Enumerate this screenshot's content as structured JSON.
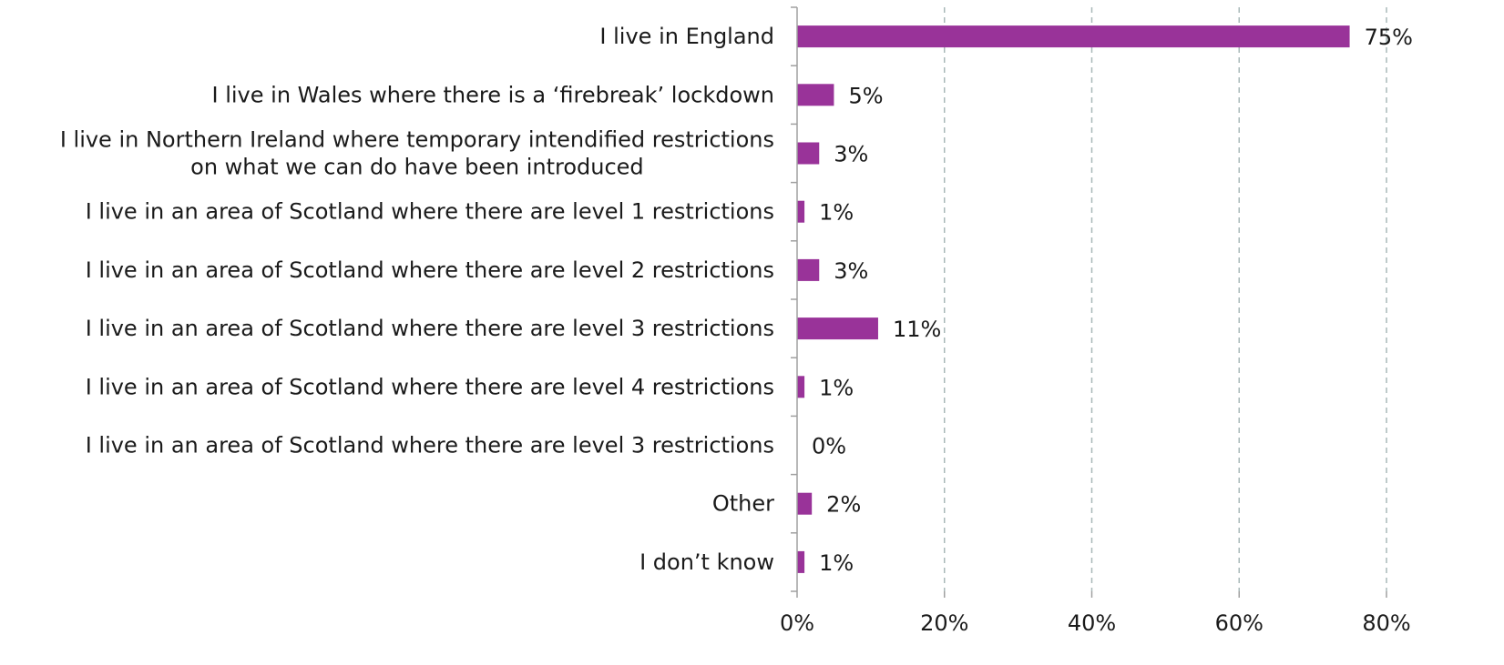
{
  "chart_data": {
    "type": "bar",
    "orientation": "horizontal",
    "categories": [
      [
        "I live in England"
      ],
      [
        "I live in Wales where there is a ‘firebreak’ lockdown"
      ],
      [
        "I live in Northern Ireland where temporary intendified restrictions",
        "on what we can do have been introduced"
      ],
      [
        "I live in an area of Scotland where there are level 1 restrictions"
      ],
      [
        "I live in an area of Scotland where there are level 2 restrictions"
      ],
      [
        "I live in an area of Scotland where there are level 3 restrictions"
      ],
      [
        "I live in an area of Scotland where there are level 4 restrictions"
      ],
      [
        "I live in an area of Scotland where there are level 3 restrictions"
      ],
      [
        "Other"
      ],
      [
        "I don’t know"
      ]
    ],
    "values": [
      75,
      5,
      3,
      1,
      3,
      11,
      1,
      0,
      2,
      1
    ],
    "value_labels": [
      "75%",
      "5%",
      "3%",
      "1%",
      "3%",
      "11%",
      "1%",
      "0%",
      "2%",
      "1%"
    ],
    "x_ticks": [
      0,
      20,
      40,
      60,
      80
    ],
    "x_tick_labels": [
      "0%",
      "20%",
      "40%",
      "60%",
      "80%"
    ],
    "xlim": [
      0,
      80
    ],
    "grid": "vertical-dashed",
    "bar_color": "#993399",
    "grid_color": "#a8b8b8",
    "axis_color": "#a0a0a0",
    "title": "",
    "xlabel": "",
    "ylabel": ""
  }
}
